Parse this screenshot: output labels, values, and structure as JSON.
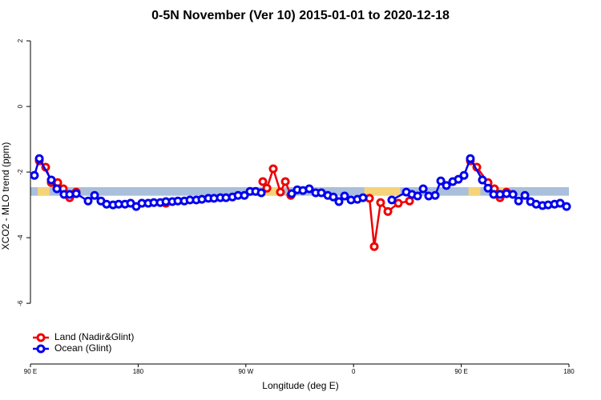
{
  "chart_data": {
    "type": "line",
    "title": "0-5N November (Ver 10)   2015-01-01 to 2020-12-18",
    "x_label": "Longitude (deg E)",
    "y_label": "XCO2 - MLO trend (ppm)",
    "xlim": [
      90,
      540
    ],
    "ylim": [
      -7.85,
      2.27
    ],
    "xticks": [
      {
        "value": 90,
        "label": "90 E"
      },
      {
        "value": 180,
        "label": "180"
      },
      {
        "value": 270,
        "label": "90 W"
      },
      {
        "value": 360,
        "label": "0"
      },
      {
        "value": 450,
        "label": "90 E"
      },
      {
        "value": 540,
        "label": "180"
      }
    ],
    "yticks": [
      2,
      0,
      -2,
      -4,
      -6
    ],
    "band": {
      "range": [
        -2.46,
        -2.72
      ],
      "color": "#a9bfdc",
      "land_color": "#f5d37a",
      "land_spans": [
        [
          96,
          106
        ],
        [
          285,
          302
        ],
        [
          369,
          399
        ],
        [
          456,
          466
        ],
        [
          480,
          490
        ]
      ]
    },
    "legend": "bottom-left",
    "series": [
      {
        "name": "Land (Nadir&Glint)",
        "color": "#ee0000",
        "x": [
          97.4,
          102.7,
          107.4,
          112.8,
          117.5,
          122.8,
          128.2,
          null,
          203.2,
          null,
          284.2,
          287.6,
          292.9,
          298.9,
          303.0,
          307.6,
          null,
          373.3,
          377.3,
          382.6,
          388.7,
          397.4,
          406.8,
          null,
          457.6,
          463.0,
          472.4,
          477.7,
          482.4,
          487.8
        ],
        "values": [
          -1.66,
          -1.85,
          -2.32,
          -2.32,
          -2.51,
          -2.78,
          -2.61,
          null,
          -2.95,
          null,
          -2.29,
          -2.49,
          -1.9,
          -2.61,
          -2.29,
          -2.71,
          null,
          -2.8,
          -4.27,
          -2.93,
          -3.2,
          -2.95,
          -2.88,
          null,
          -1.66,
          -1.85,
          -2.32,
          -2.51,
          -2.78,
          -2.61
        ]
      },
      {
        "name": "Ocean (Glint)",
        "color": "#0000ee",
        "x": [
          93.3,
          97.4,
          107.4,
          112.1,
          118.1,
          122.8,
          128.2,
          138.2,
          143.6,
          148.9,
          153.6,
          159.0,
          163.7,
          169.0,
          173.7,
          178.4,
          183.1,
          188.4,
          193.1,
          198.5,
          203.2,
          208.5,
          213.2,
          218.6,
          223.3,
          228.6,
          233.3,
          238.7,
          243.4,
          248.7,
          253.4,
          258.8,
          263.5,
          268.8,
          273.5,
          278.2,
          282.9,
          null,
          308.3,
          313.0,
          317.7,
          323.0,
          328.4,
          333.1,
          338.5,
          343.1,
          347.8,
          352.5,
          357.9,
          363.2,
          367.9,
          null,
          392.0,
          404.1,
          408.8,
          413.5,
          418.2,
          422.8,
          428.2,
          432.9,
          437.6,
          442.9,
          447.6,
          452.3,
          457.6,
          467.7,
          472.4,
          477.1,
          482.4,
          487.8,
          493.2,
          497.9,
          503.2,
          507.9,
          512.6,
          517.9,
          522.6,
          528.0,
          532.7,
          538.0
        ],
        "values": [
          -2.1,
          -1.59,
          -2.24,
          -2.51,
          -2.68,
          -2.68,
          -2.66,
          -2.88,
          -2.71,
          -2.88,
          -2.98,
          -3.0,
          -2.98,
          -2.98,
          -2.95,
          -3.05,
          -2.95,
          -2.95,
          -2.93,
          -2.93,
          -2.9,
          -2.9,
          -2.88,
          -2.88,
          -2.85,
          -2.85,
          -2.83,
          -2.8,
          -2.8,
          -2.78,
          -2.78,
          -2.76,
          -2.71,
          -2.71,
          -2.59,
          -2.59,
          -2.63,
          null,
          -2.66,
          -2.54,
          -2.56,
          -2.51,
          -2.63,
          -2.63,
          -2.71,
          -2.76,
          -2.9,
          -2.73,
          -2.85,
          -2.83,
          -2.78,
          null,
          -2.85,
          -2.61,
          -2.68,
          -2.73,
          -2.51,
          -2.73,
          -2.71,
          -2.27,
          -2.41,
          -2.29,
          -2.22,
          -2.1,
          -1.59,
          -2.24,
          -2.49,
          -2.68,
          -2.68,
          -2.66,
          -2.68,
          -2.88,
          -2.71,
          -2.9,
          -2.98,
          -3.02,
          -3.0,
          -2.98,
          -2.95,
          -3.05
        ]
      }
    ]
  }
}
